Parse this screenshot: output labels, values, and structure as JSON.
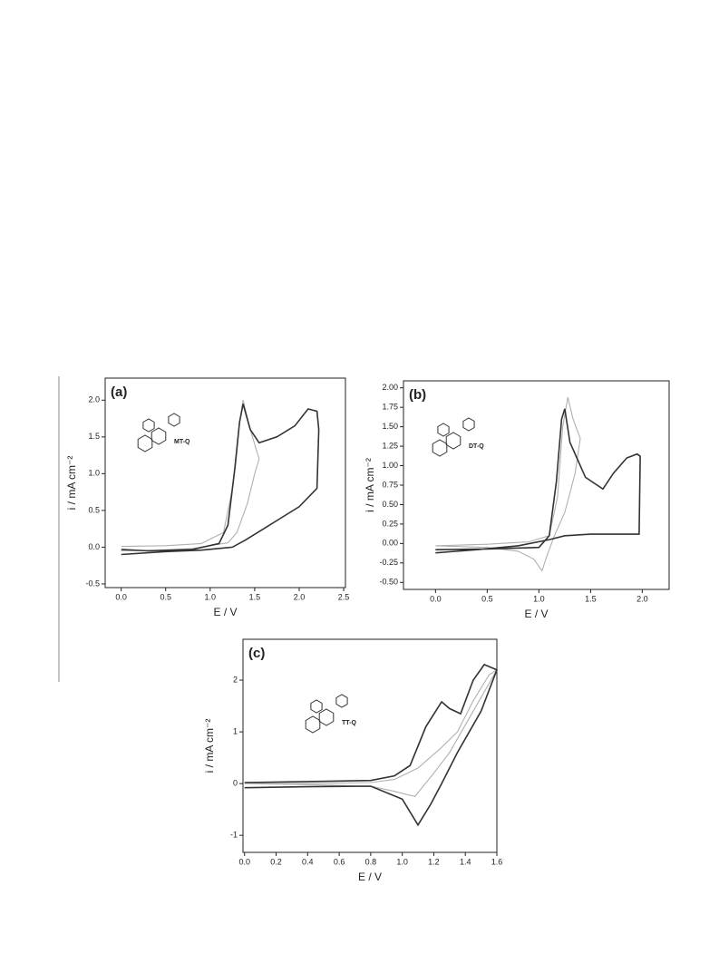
{
  "chart_data": [
    {
      "type": "line",
      "panel": "(a)",
      "annotation": "MT-Q",
      "xlabel": "E / V",
      "ylabel": "i / mA cm⁻²",
      "xlim": [
        -0.18,
        2.52
      ],
      "ylim": [
        -0.55,
        2.3
      ],
      "xticks": [
        {
          "value": 0,
          "label": "0.0"
        },
        {
          "value": 0.5,
          "label": "0.5"
        },
        {
          "value": 1,
          "label": "1.0"
        },
        {
          "value": 1.5,
          "label": "1.5"
        },
        {
          "value": 2,
          "label": "2.0"
        },
        {
          "value": 2.5,
          "label": "2.5"
        }
      ],
      "yticks": [
        {
          "value": -0.5,
          "label": "-0.5"
        },
        {
          "value": 0,
          "label": "0.0"
        },
        {
          "value": 0.5,
          "label": "0.5"
        },
        {
          "value": 1,
          "label": "1.0"
        },
        {
          "value": 1.5,
          "label": "1.5"
        },
        {
          "value": 2,
          "label": "2.0"
        }
      ],
      "series": [
        {
          "color": "#b0b0b0",
          "x": [
            0,
            0.5,
            0.9,
            1.15,
            1.25,
            1.32,
            1.37,
            1.45,
            1.55,
            1.5,
            1.42,
            1.3,
            1.2,
            0.8,
            0.4,
            0
          ],
          "values": [
            0.01,
            0.02,
            0.05,
            0.2,
            0.8,
            1.6,
            2.0,
            1.6,
            1.2,
            1.0,
            0.6,
            0.2,
            0.06,
            -0.02,
            -0.04,
            -0.05
          ]
        },
        {
          "color": "#333333",
          "x": [
            0,
            0.3,
            0.8,
            1.1,
            1.2,
            1.28,
            1.33,
            1.37,
            1.45,
            1.55,
            1.75,
            1.95,
            2.1,
            2.2,
            2.22,
            2.2,
            2.0,
            1.8,
            1.6,
            1.4,
            1.25,
            0.9,
            0.5,
            0
          ],
          "values": [
            -0.03,
            -0.05,
            -0.03,
            0.05,
            0.3,
            1.1,
            1.7,
            1.95,
            1.6,
            1.42,
            1.5,
            1.65,
            1.88,
            1.85,
            1.6,
            0.8,
            0.55,
            0.4,
            0.25,
            0.1,
            0.0,
            -0.04,
            -0.06,
            -0.1
          ]
        }
      ]
    },
    {
      "type": "line",
      "panel": "(b)",
      "annotation": "DT-Q",
      "xlabel": "E / V",
      "ylabel": "i / mA cm⁻²",
      "xlim": [
        -0.31,
        2.26
      ],
      "ylim": [
        -0.59,
        2.09
      ],
      "xticks": [
        {
          "value": 0,
          "label": "0.0"
        },
        {
          "value": 0.5,
          "label": "0.5"
        },
        {
          "value": 1,
          "label": "1.0"
        },
        {
          "value": 1.5,
          "label": "1.5"
        },
        {
          "value": 2,
          "label": "2.0"
        }
      ],
      "yticks": [
        {
          "value": -0.5,
          "label": "-0.50"
        },
        {
          "value": -0.25,
          "label": "-0.25"
        },
        {
          "value": 0,
          "label": "0.00"
        },
        {
          "value": 0.25,
          "label": "0.25"
        },
        {
          "value": 0.5,
          "label": "0.50"
        },
        {
          "value": 0.75,
          "label": "0.75"
        },
        {
          "value": 1,
          "label": "1.00"
        },
        {
          "value": 1.25,
          "label": "1.25"
        },
        {
          "value": 1.5,
          "label": "1.50"
        },
        {
          "value": 1.75,
          "label": "1.75"
        },
        {
          "value": 2,
          "label": "2.00"
        }
      ],
      "series": [
        {
          "color": "#b0b0b0",
          "x": [
            0,
            0.5,
            0.9,
            1.1,
            1.18,
            1.23,
            1.28,
            1.33,
            1.4,
            1.35,
            1.25,
            1.15,
            1.08,
            1.03,
            0.95,
            0.8,
            0.5,
            0
          ],
          "values": [
            -0.03,
            -0.01,
            0.02,
            0.1,
            0.6,
            1.5,
            1.88,
            1.6,
            1.35,
            0.9,
            0.4,
            0.1,
            -0.15,
            -0.35,
            -0.2,
            -0.1,
            -0.05,
            -0.03
          ]
        },
        {
          "color": "#333333",
          "x": [
            0,
            0.5,
            1.0,
            1.1,
            1.17,
            1.22,
            1.25,
            1.3,
            1.45,
            1.62,
            1.72,
            1.85,
            1.95,
            1.98,
            1.97,
            1.5,
            1.25,
            1.1,
            0.8,
            0.4,
            0
          ],
          "values": [
            -0.08,
            -0.07,
            -0.05,
            0.1,
            0.8,
            1.6,
            1.73,
            1.3,
            0.85,
            0.7,
            0.9,
            1.1,
            1.15,
            1.12,
            0.12,
            0.12,
            0.1,
            0.05,
            -0.03,
            -0.08,
            -0.12
          ]
        }
      ]
    },
    {
      "type": "line",
      "panel": "(c)",
      "annotation": "TT-Q",
      "xlabel": "E / V",
      "ylabel": "i / mA cm⁻²",
      "xlim": [
        -0.01,
        1.6
      ],
      "ylim": [
        -1.33,
        2.79
      ],
      "xticks": [
        {
          "value": 0,
          "label": "0.0"
        },
        {
          "value": 0.2,
          "label": "0.2"
        },
        {
          "value": 0.4,
          "label": "0.4"
        },
        {
          "value": 0.6,
          "label": "0.6"
        },
        {
          "value": 0.8,
          "label": "0.8"
        },
        {
          "value": 1,
          "label": "1.0"
        },
        {
          "value": 1.2,
          "label": "1.2"
        },
        {
          "value": 1.4,
          "label": "1.4"
        },
        {
          "value": 1.6,
          "label": "1.6"
        }
      ],
      "yticks": [
        -1,
        0,
        1,
        2
      ],
      "series": [
        {
          "color": "#b0b0b0",
          "x": [
            0,
            0.4,
            0.8,
            0.95,
            1.1,
            1.25,
            1.35,
            1.45,
            1.55,
            1.6,
            1.45,
            1.3,
            1.2,
            1.08,
            0.95,
            0.8,
            0.4,
            0
          ],
          "values": [
            0,
            0.0,
            0.02,
            0.08,
            0.3,
            0.7,
            1.0,
            1.6,
            2.1,
            2.2,
            1.4,
            0.6,
            0.2,
            -0.25,
            -0.15,
            -0.05,
            -0.02,
            0
          ]
        },
        {
          "color": "#333333",
          "x": [
            0,
            0.4,
            0.8,
            0.95,
            1.05,
            1.15,
            1.25,
            1.3,
            1.37,
            1.45,
            1.52,
            1.6,
            1.5,
            1.35,
            1.25,
            1.18,
            1.1,
            1.0,
            0.8,
            0.4,
            0
          ],
          "values": [
            0.02,
            0.04,
            0.06,
            0.15,
            0.35,
            1.1,
            1.58,
            1.45,
            1.35,
            2.0,
            2.3,
            2.2,
            1.4,
            0.6,
            0.0,
            -0.4,
            -0.8,
            -0.3,
            -0.05,
            -0.06,
            -0.08
          ]
        }
      ]
    }
  ]
}
